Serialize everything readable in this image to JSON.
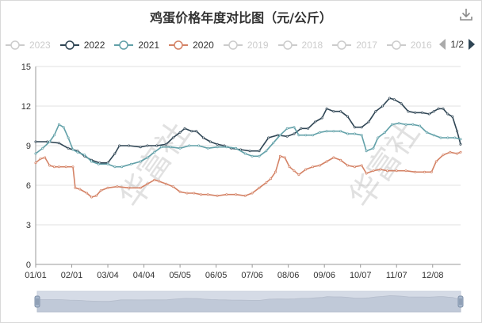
{
  "title": "鸡蛋价格年度对比图（元/公斤）",
  "toolbox": {
    "download_icon": "download-icon"
  },
  "watermark": "华富社",
  "legend": {
    "items": [
      {
        "label": "2023",
        "color": "#cccccc",
        "active": false
      },
      {
        "label": "2022",
        "color": "#2f4554",
        "active": true
      },
      {
        "label": "2021",
        "color": "#61a0a8",
        "active": true
      },
      {
        "label": "2020",
        "color": "#d48265",
        "active": true
      },
      {
        "label": "2019",
        "color": "#cccccc",
        "active": false
      },
      {
        "label": "2018",
        "color": "#cccccc",
        "active": false
      },
      {
        "label": "2017",
        "color": "#cccccc",
        "active": false
      },
      {
        "label": "2016",
        "color": "#cccccc",
        "active": false
      }
    ],
    "page": "1/2"
  },
  "chart_data": {
    "type": "line",
    "title": "鸡蛋价格年度对比图（元/公斤）",
    "xlabel": "",
    "ylabel": "",
    "ylim": [
      0,
      15
    ],
    "yticks": [
      0,
      3,
      6,
      9,
      12,
      15
    ],
    "x_tick_labels": [
      "01/01",
      "02/01",
      "03/04",
      "04/04",
      "05/05",
      "06/05",
      "07/06",
      "08/06",
      "09/06",
      "10/07",
      "11/07",
      "12/08"
    ],
    "x_tick_days": [
      0,
      31,
      62,
      93,
      124,
      155,
      186,
      217,
      248,
      279,
      310,
      341
    ],
    "grid": true,
    "series": [
      {
        "name": "2022",
        "color": "#2f4554",
        "points": [
          [
            0,
            9.3
          ],
          [
            10,
            9.3
          ],
          [
            20,
            9.2
          ],
          [
            28,
            8.8
          ],
          [
            36,
            8.6
          ],
          [
            42,
            8.2
          ],
          [
            48,
            7.9
          ],
          [
            55,
            7.7
          ],
          [
            62,
            7.7
          ],
          [
            68,
            8.4
          ],
          [
            72,
            9.0
          ],
          [
            80,
            9.0
          ],
          [
            90,
            8.9
          ],
          [
            96,
            9.0
          ],
          [
            104,
            9.0
          ],
          [
            112,
            9.1
          ],
          [
            118,
            9.6
          ],
          [
            124,
            10.0
          ],
          [
            128,
            10.3
          ],
          [
            134,
            10.1
          ],
          [
            138,
            10.1
          ],
          [
            144,
            9.6
          ],
          [
            150,
            9.3
          ],
          [
            156,
            9.1
          ],
          [
            162,
            9.0
          ],
          [
            168,
            8.8
          ],
          [
            176,
            8.7
          ],
          [
            184,
            8.6
          ],
          [
            192,
            8.6
          ],
          [
            200,
            9.6
          ],
          [
            208,
            9.8
          ],
          [
            216,
            9.7
          ],
          [
            222,
            9.9
          ],
          [
            228,
            10.3
          ],
          [
            234,
            10.3
          ],
          [
            240,
            10.8
          ],
          [
            246,
            11.1
          ],
          [
            250,
            11.8
          ],
          [
            256,
            11.6
          ],
          [
            262,
            11.6
          ],
          [
            268,
            11.2
          ],
          [
            274,
            10.4
          ],
          [
            280,
            10.4
          ],
          [
            286,
            10.8
          ],
          [
            292,
            11.6
          ],
          [
            298,
            12.0
          ],
          [
            304,
            12.6
          ],
          [
            308,
            12.5
          ],
          [
            314,
            12.2
          ],
          [
            320,
            11.6
          ],
          [
            326,
            11.5
          ],
          [
            332,
            11.5
          ],
          [
            338,
            11.4
          ],
          [
            342,
            11.6
          ],
          [
            346,
            11.8
          ],
          [
            350,
            11.8
          ],
          [
            354,
            11.4
          ],
          [
            358,
            11.2
          ],
          [
            362,
            10.1
          ],
          [
            365,
            9.1
          ]
        ]
      },
      {
        "name": "2021",
        "color": "#61a0a8",
        "points": [
          [
            0,
            8.4
          ],
          [
            6,
            8.8
          ],
          [
            12,
            9.3
          ],
          [
            16,
            9.8
          ],
          [
            20,
            10.6
          ],
          [
            24,
            10.4
          ],
          [
            28,
            9.6
          ],
          [
            32,
            8.7
          ],
          [
            36,
            8.5
          ],
          [
            42,
            8.3
          ],
          [
            48,
            7.8
          ],
          [
            54,
            7.6
          ],
          [
            62,
            7.6
          ],
          [
            68,
            7.4
          ],
          [
            74,
            7.4
          ],
          [
            82,
            7.6
          ],
          [
            90,
            7.8
          ],
          [
            96,
            8.1
          ],
          [
            102,
            8.5
          ],
          [
            108,
            8.9
          ],
          [
            116,
            8.9
          ],
          [
            124,
            8.8
          ],
          [
            132,
            9.0
          ],
          [
            140,
            9.0
          ],
          [
            148,
            8.8
          ],
          [
            156,
            8.9
          ],
          [
            164,
            8.9
          ],
          [
            172,
            8.8
          ],
          [
            180,
            8.4
          ],
          [
            186,
            8.2
          ],
          [
            192,
            8.2
          ],
          [
            198,
            8.6
          ],
          [
            204,
            9.2
          ],
          [
            210,
            9.8
          ],
          [
            216,
            10.3
          ],
          [
            222,
            10.4
          ],
          [
            226,
            9.8
          ],
          [
            232,
            9.8
          ],
          [
            238,
            9.8
          ],
          [
            244,
            10.0
          ],
          [
            250,
            10.1
          ],
          [
            256,
            10.1
          ],
          [
            262,
            10.1
          ],
          [
            268,
            9.9
          ],
          [
            274,
            9.9
          ],
          [
            280,
            9.8
          ],
          [
            284,
            8.6
          ],
          [
            290,
            8.8
          ],
          [
            294,
            9.6
          ],
          [
            300,
            10.0
          ],
          [
            306,
            10.6
          ],
          [
            312,
            10.7
          ],
          [
            318,
            10.6
          ],
          [
            324,
            10.6
          ],
          [
            330,
            10.5
          ],
          [
            336,
            10.0
          ],
          [
            342,
            9.8
          ],
          [
            348,
            9.6
          ],
          [
            354,
            9.6
          ],
          [
            360,
            9.6
          ],
          [
            365,
            9.5
          ]
        ]
      },
      {
        "name": "2020",
        "color": "#d48265",
        "points": [
          [
            0,
            7.7
          ],
          [
            4,
            8.0
          ],
          [
            8,
            8.1
          ],
          [
            12,
            7.5
          ],
          [
            16,
            7.4
          ],
          [
            20,
            7.4
          ],
          [
            26,
            7.4
          ],
          [
            32,
            7.4
          ],
          [
            34,
            5.8
          ],
          [
            38,
            5.7
          ],
          [
            44,
            5.4
          ],
          [
            48,
            5.1
          ],
          [
            52,
            5.2
          ],
          [
            56,
            5.6
          ],
          [
            62,
            5.8
          ],
          [
            70,
            5.9
          ],
          [
            80,
            5.8
          ],
          [
            90,
            5.8
          ],
          [
            96,
            6.1
          ],
          [
            102,
            6.4
          ],
          [
            106,
            6.3
          ],
          [
            112,
            6.1
          ],
          [
            118,
            5.9
          ],
          [
            124,
            5.5
          ],
          [
            130,
            5.4
          ],
          [
            136,
            5.4
          ],
          [
            142,
            5.3
          ],
          [
            148,
            5.3
          ],
          [
            156,
            5.2
          ],
          [
            164,
            5.3
          ],
          [
            172,
            5.3
          ],
          [
            180,
            5.2
          ],
          [
            186,
            5.4
          ],
          [
            192,
            5.8
          ],
          [
            198,
            6.2
          ],
          [
            202,
            6.5
          ],
          [
            206,
            7.0
          ],
          [
            210,
            8.2
          ],
          [
            214,
            8.1
          ],
          [
            218,
            7.4
          ],
          [
            222,
            7.1
          ],
          [
            226,
            6.8
          ],
          [
            232,
            7.2
          ],
          [
            238,
            7.4
          ],
          [
            244,
            7.5
          ],
          [
            250,
            7.8
          ],
          [
            256,
            8.1
          ],
          [
            262,
            7.9
          ],
          [
            268,
            7.5
          ],
          [
            274,
            7.4
          ],
          [
            280,
            7.5
          ],
          [
            284,
            6.9
          ],
          [
            290,
            7.1
          ],
          [
            296,
            7.2
          ],
          [
            302,
            7.1
          ],
          [
            310,
            7.1
          ],
          [
            318,
            7.1
          ],
          [
            326,
            7.0
          ],
          [
            334,
            7.0
          ],
          [
            340,
            7.0
          ],
          [
            344,
            7.8
          ],
          [
            350,
            8.3
          ],
          [
            356,
            8.5
          ],
          [
            362,
            8.4
          ],
          [
            365,
            8.5
          ]
        ]
      }
    ]
  },
  "data_zoom": {
    "start": 0,
    "end": 100
  }
}
